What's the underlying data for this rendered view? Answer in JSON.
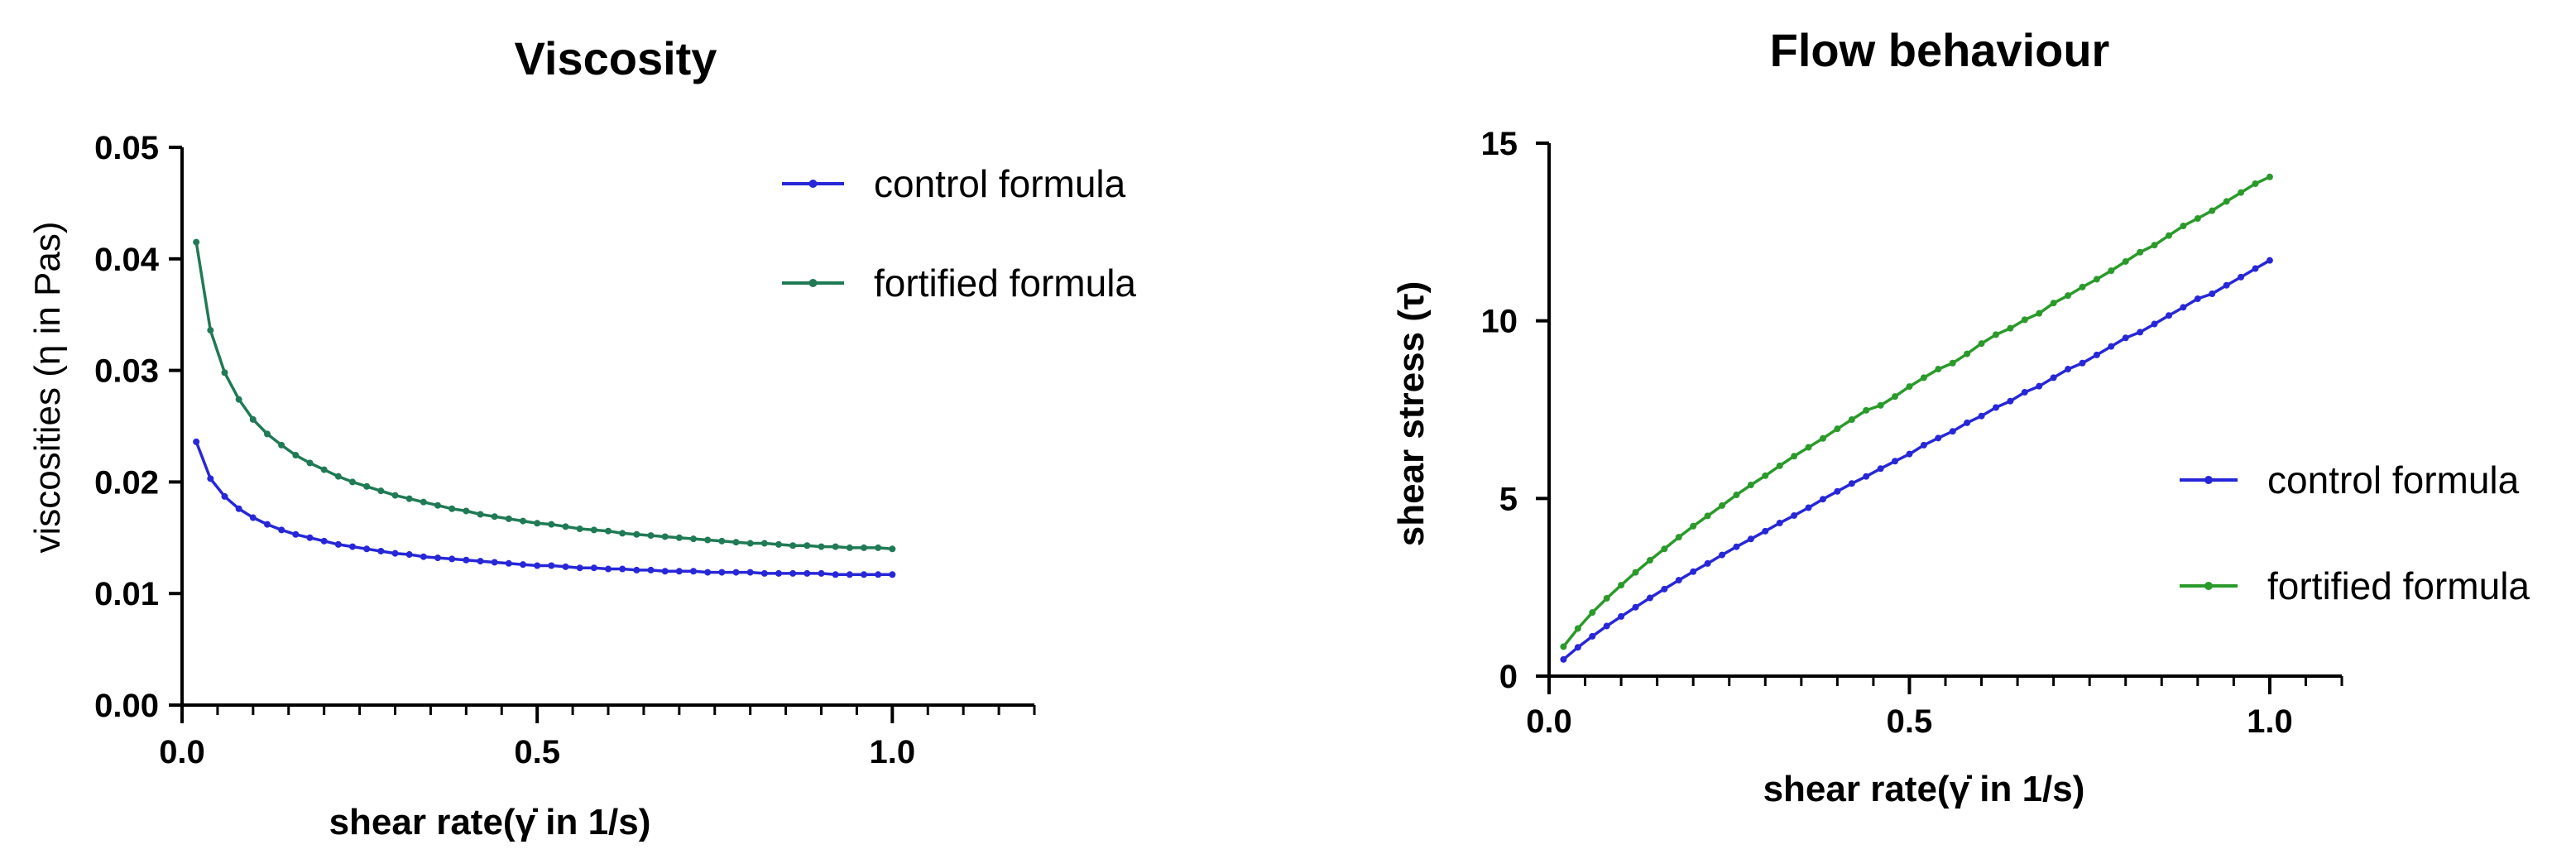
{
  "chart_data": [
    {
      "type": "line",
      "title": "Viscosity",
      "xlabel": "shear rate(γ̇ in 1/s)",
      "ylabel": "viscosities (η in Pas)",
      "xlim": [
        0,
        1.2
      ],
      "ylim": [
        0,
        0.05
      ],
      "x_ticks": [
        "0.0",
        "0.5",
        "1.0"
      ],
      "y_ticks": [
        "0.00",
        "0.01",
        "0.02",
        "0.03",
        "0.04",
        "0.05"
      ],
      "grid": false,
      "legend_position": "top-right",
      "x": [
        0.02,
        0.04,
        0.06,
        0.08,
        0.1,
        0.12,
        0.14,
        0.16,
        0.18,
        0.2,
        0.22,
        0.24,
        0.26,
        0.28,
        0.3,
        0.32,
        0.34,
        0.36,
        0.38,
        0.4,
        0.42,
        0.44,
        0.46,
        0.48,
        0.5,
        0.52,
        0.54,
        0.56,
        0.58,
        0.6,
        0.62,
        0.64,
        0.66,
        0.68,
        0.7,
        0.72,
        0.74,
        0.76,
        0.78,
        0.8,
        0.82,
        0.84,
        0.86,
        0.88,
        0.9,
        0.92,
        0.94,
        0.96,
        0.98,
        1.0
      ],
      "series": [
        {
          "name": "control formula",
          "color": "#2727d8",
          "values": [
            0.0236,
            0.0203,
            0.0187,
            0.0176,
            0.0168,
            0.0162,
            0.0157,
            0.0153,
            0.015,
            0.0147,
            0.0144,
            0.0142,
            0.014,
            0.0138,
            0.0136,
            0.0135,
            0.0133,
            0.0132,
            0.0131,
            0.013,
            0.0129,
            0.0128,
            0.0127,
            0.0126,
            0.0125,
            0.0125,
            0.0124,
            0.0123,
            0.0123,
            0.0122,
            0.0122,
            0.0121,
            0.0121,
            0.012,
            0.012,
            0.012,
            0.0119,
            0.0119,
            0.0119,
            0.0119,
            0.0118,
            0.0118,
            0.0118,
            0.0118,
            0.0118,
            0.0117,
            0.0117,
            0.0117,
            0.0117,
            0.0117
          ]
        },
        {
          "name": "fortified formula",
          "color": "#1f7a55",
          "values": [
            0.0415,
            0.0336,
            0.0298,
            0.0274,
            0.0256,
            0.0243,
            0.0233,
            0.0224,
            0.0217,
            0.0211,
            0.0205,
            0.02,
            0.0196,
            0.0192,
            0.0188,
            0.0185,
            0.0182,
            0.0179,
            0.0176,
            0.0174,
            0.0171,
            0.0169,
            0.0167,
            0.0165,
            0.0163,
            0.0162,
            0.016,
            0.0158,
            0.0157,
            0.0156,
            0.0154,
            0.0153,
            0.0152,
            0.0151,
            0.015,
            0.0149,
            0.0148,
            0.0147,
            0.0146,
            0.0145,
            0.0145,
            0.0144,
            0.0143,
            0.0143,
            0.0142,
            0.0142,
            0.0141,
            0.0141,
            0.0141,
            0.014
          ]
        }
      ]
    },
    {
      "type": "line",
      "title": "Flow behaviour",
      "xlabel": "shear rate(γ̇ in 1/s)",
      "ylabel": "shear stress (τ)",
      "xlim": [
        0,
        1.1
      ],
      "ylim": [
        0,
        15
      ],
      "x_ticks": [
        "0.0",
        "0.5",
        "1.0"
      ],
      "y_ticks": [
        "0",
        "5",
        "10",
        "15"
      ],
      "grid": false,
      "legend_position": "bottom-right",
      "x": [
        0.02,
        0.04,
        0.06,
        0.08,
        0.1,
        0.12,
        0.14,
        0.16,
        0.18,
        0.2,
        0.22,
        0.24,
        0.26,
        0.28,
        0.3,
        0.32,
        0.34,
        0.36,
        0.38,
        0.4,
        0.42,
        0.44,
        0.46,
        0.48,
        0.5,
        0.52,
        0.54,
        0.56,
        0.58,
        0.6,
        0.62,
        0.64,
        0.66,
        0.68,
        0.7,
        0.72,
        0.74,
        0.76,
        0.78,
        0.8,
        0.82,
        0.84,
        0.86,
        0.88,
        0.9,
        0.92,
        0.94,
        0.96,
        0.98,
        1.0
      ],
      "series": [
        {
          "name": "control formula",
          "color": "#2727d8",
          "values": [
            0.47,
            0.81,
            1.12,
            1.41,
            1.68,
            1.94,
            2.2,
            2.45,
            2.7,
            2.94,
            3.17,
            3.41,
            3.64,
            3.86,
            4.08,
            4.31,
            4.52,
            4.74,
            4.98,
            5.2,
            5.42,
            5.62,
            5.84,
            6.05,
            6.25,
            6.5,
            6.7,
            6.89,
            7.13,
            7.32,
            7.56,
            7.74,
            7.99,
            8.16,
            8.4,
            8.64,
            8.81,
            9.04,
            9.28,
            9.52,
            9.68,
            9.91,
            10.15,
            10.38,
            10.62,
            10.76,
            11.0,
            11.23,
            11.47,
            11.7
          ]
        },
        {
          "name": "fortified formula",
          "color": "#2a9a2a",
          "values": [
            0.83,
            1.34,
            1.79,
            2.19,
            2.56,
            2.92,
            3.26,
            3.58,
            3.91,
            4.22,
            4.51,
            4.8,
            5.1,
            5.38,
            5.64,
            5.92,
            6.19,
            6.44,
            6.69,
            6.96,
            7.22,
            7.48,
            7.62,
            7.87,
            8.15,
            8.4,
            8.64,
            8.81,
            9.07,
            9.36,
            9.61,
            9.79,
            10.03,
            10.21,
            10.5,
            10.71,
            10.95,
            11.17,
            11.41,
            11.67,
            11.93,
            12.13,
            12.4,
            12.67,
            12.88,
            13.1,
            13.36,
            13.61,
            13.86,
            14.05
          ]
        }
      ]
    }
  ]
}
